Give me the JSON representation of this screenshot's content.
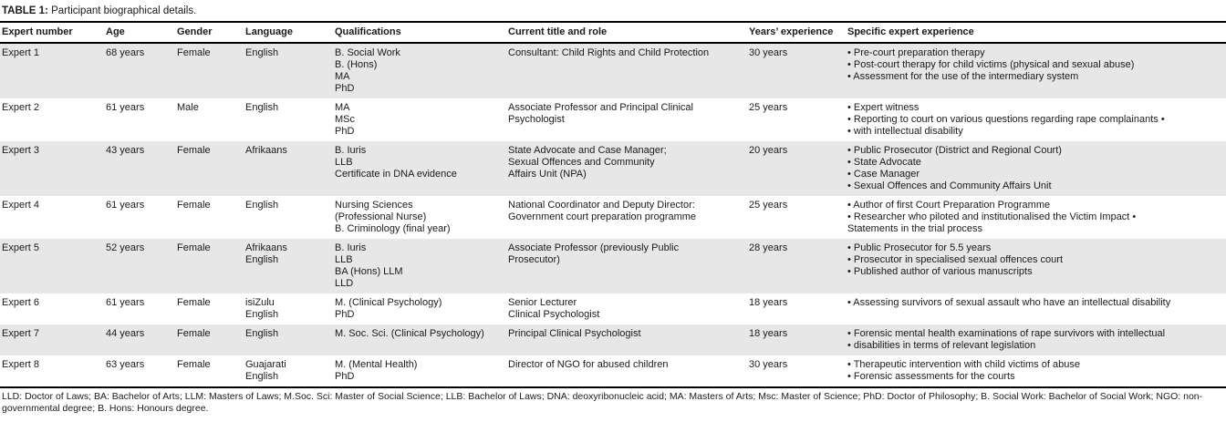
{
  "table": {
    "title_label": "TABLE 1:",
    "title_text": " Participant biographical details.",
    "columns": [
      "Expert number",
      "Age",
      "Gender",
      "Language",
      "Qualifications",
      "Current title and role",
      "Years’ experience",
      "Specific expert experience"
    ],
    "rows": [
      {
        "expert": "Expert 1",
        "age": "68 years",
        "gender": "Female",
        "language": [
          "English"
        ],
        "qualifications": [
          "B. Social Work",
          "B. (Hons)",
          "MA",
          "PhD"
        ],
        "title_role": [
          "Consultant: Child Rights and Child Protection"
        ],
        "years": "30 years",
        "experience": [
          "• Pre-court preparation therapy",
          "• Post-court therapy for child victims (physical and sexual abuse)",
          "• Assessment for the use of the intermediary system"
        ]
      },
      {
        "expert": "Expert 2",
        "age": "61 years",
        "gender": "Male",
        "language": [
          "English"
        ],
        "qualifications": [
          "MA",
          "MSc",
          "PhD"
        ],
        "title_role": [
          "Associate Professor and Principal Clinical",
          "Psychologist"
        ],
        "years": "25 years",
        "experience": [
          "• Expert witness",
          "• Reporting to court on various questions regarding rape complainants •",
          "• with intellectual disability"
        ]
      },
      {
        "expert": "Expert 3",
        "age": "43 years",
        "gender": "Female",
        "language": [
          "Afrikaans"
        ],
        "qualifications": [
          "B. Iuris",
          "LLB",
          "Certificate in DNA evidence"
        ],
        "title_role": [
          "State Advocate and Case Manager;",
          "Sexual Offences and Community",
          "Affairs Unit (NPA)"
        ],
        "years": "20 years",
        "experience": [
          "• Public Prosecutor (District and Regional Court)",
          "• State Advocate",
          "• Case Manager",
          "• Sexual Offences and Community Affairs Unit"
        ]
      },
      {
        "expert": "Expert 4",
        "age": "61 years",
        "gender": "Female",
        "language": [
          "English"
        ],
        "qualifications": [
          "Nursing Sciences",
          "(Professional Nurse)",
          "B. Criminology (final year)"
        ],
        "title_role": [
          "National Coordinator and Deputy Director:",
          "Government court preparation programme"
        ],
        "years": "25 years",
        "experience": [
          "• Author of first Court Preparation Programme",
          "• Researcher who piloted and institutionalised the Victim Impact •",
          "Statements in the trial process"
        ]
      },
      {
        "expert": "Expert 5",
        "age": "52 years",
        "gender": "Female",
        "language": [
          "Afrikaans",
          "English"
        ],
        "qualifications": [
          "B. Iuris",
          "LLB",
          "BA (Hons) LLM",
          "LLD"
        ],
        "title_role": [
          "Associate Professor (previously Public",
          "Prosecutor)"
        ],
        "years": "28 years",
        "experience": [
          "• Public Prosecutor for 5.5 years",
          "• Prosecutor in specialised sexual offences court",
          "• Published author of various manuscripts"
        ]
      },
      {
        "expert": "Expert 6",
        "age": "61 years",
        "gender": "Female",
        "language": [
          "isiZulu",
          "English"
        ],
        "qualifications": [
          "M. (Clinical Psychology)",
          "PhD"
        ],
        "title_role": [
          "Senior Lecturer",
          "Clinical Psychologist"
        ],
        "years": "18 years",
        "experience": [
          "• Assessing survivors of sexual assault who have an intellectual disability"
        ]
      },
      {
        "expert": "Expert 7",
        "age": "44 years",
        "gender": "Female",
        "language": [
          "English"
        ],
        "qualifications": [
          "M. Soc. Sci. (Clinical Psychology)"
        ],
        "title_role": [
          "Principal Clinical Psychologist"
        ],
        "years": "18 years",
        "experience": [
          "• Forensic mental health examinations of rape survivors with intellectual",
          "• disabilities in terms of relevant legislation"
        ]
      },
      {
        "expert": "Expert 8",
        "age": "63 years",
        "gender": "Female",
        "language": [
          "Guajarati",
          "English"
        ],
        "qualifications": [
          "M. (Mental Health)",
          "PhD"
        ],
        "title_role": [
          "Director of NGO for abused children"
        ],
        "years": "30 years",
        "experience": [
          "• Therapeutic intervention with child victims of abuse",
          "• Forensic assessments for the courts"
        ]
      }
    ],
    "footnote": "LLD: Doctor of Laws; BA: Bachelor of Arts; LLM: Masters of Laws; M.Soc. Sci: Master of Social Science; LLB: Bachelor of Laws; DNA: deoxyribonucleic acid; MA: Masters of Arts; Msc: Master of Science; PhD: Doctor of Philosophy; B. Social Work: Bachelor of Social Work; NGO: non-governmental degree; B. Hons: Honours degree.",
    "colors": {
      "row_shade": "#e7e7e7",
      "rule": "#000000",
      "text": "#1a1a1a"
    }
  }
}
